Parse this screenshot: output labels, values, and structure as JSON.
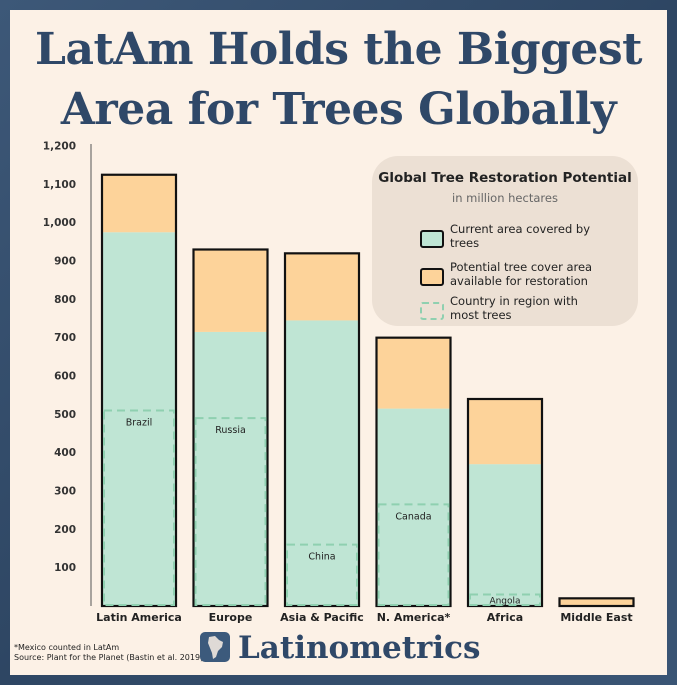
{
  "title": {
    "line1": "LatAm Holds the Biggest",
    "line2": "Area for Trees Globally"
  },
  "legend": {
    "title": "Global Tree Restoration Potential",
    "subtitle": "in million hectares",
    "items": [
      {
        "label": "Current area covered by trees",
        "color": "#bfe5d4"
      },
      {
        "label": "Potential tree cover area available for restoration",
        "color": "#fdd39a"
      },
      {
        "label": "Country in region with most trees",
        "color": "#8fd0b0"
      }
    ]
  },
  "footnote": {
    "line1": "*Mexico counted in LatAm",
    "line2": "Source: Plant for the Planet (Bastin et al. 2019)"
  },
  "brand": {
    "name": "Latinometrics"
  },
  "chart_data": {
    "type": "bar",
    "stacked": true,
    "categories": [
      "Latin America",
      "Europe",
      "Asia & Pacific",
      "N. America*",
      "Africa",
      "Middle East"
    ],
    "series": [
      {
        "name": "Current area covered by trees",
        "color": "#bfe5d4",
        "values": [
          975,
          715,
          745,
          515,
          370,
          0
        ]
      },
      {
        "name": "Potential tree cover area available for restoration",
        "color": "#fdd39a",
        "values": [
          150,
          215,
          175,
          185,
          170,
          20
        ]
      }
    ],
    "top_countries": [
      {
        "label": "Brazil",
        "value": 510
      },
      {
        "label": "Russia",
        "value": 490
      },
      {
        "label": "China",
        "value": 160
      },
      {
        "label": "Canada",
        "value": 265
      },
      {
        "label": "Angola",
        "value": 30
      },
      {
        "label": "",
        "value": 0
      }
    ],
    "yticks": [
      "100",
      "200",
      "300",
      "400",
      "500",
      "600",
      "700",
      "800",
      "900",
      "1,000",
      "1,100",
      "1,200"
    ],
    "ylim": [
      0,
      1200
    ],
    "grid": false
  }
}
